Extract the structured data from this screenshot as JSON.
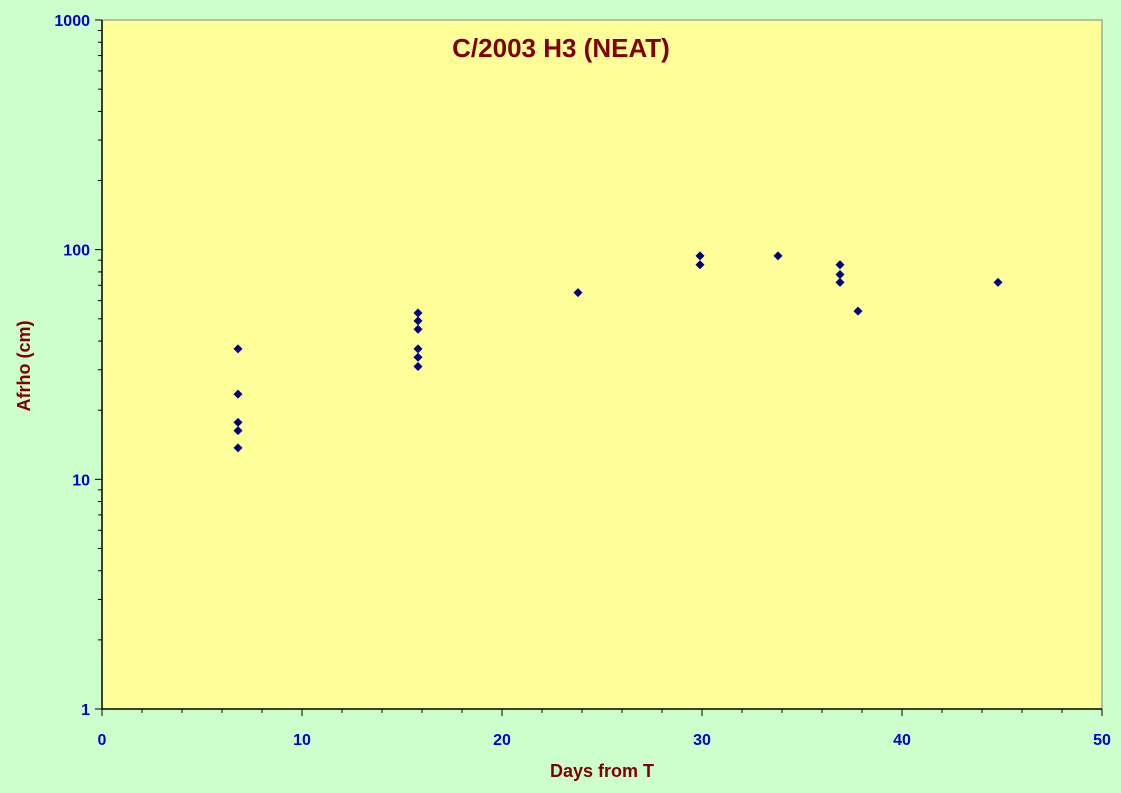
{
  "chart_data": {
    "type": "scatter",
    "title": "C/2003 H3 (NEAT)",
    "xlabel": "Days from T",
    "ylabel": "Afrho (cm)",
    "xlim": [
      0,
      50
    ],
    "ylim": [
      1,
      1000
    ],
    "y_scale": "log",
    "x_ticks": [
      0,
      10,
      20,
      30,
      40,
      50
    ],
    "x_tick_labels": [
      "0",
      "10",
      "20",
      "30",
      "40",
      "50"
    ],
    "y_ticks": [
      1,
      10,
      100,
      1000
    ],
    "y_tick_labels": [
      "1",
      "10",
      "100",
      "1000"
    ],
    "grid": false,
    "legend": "none",
    "colors": {
      "page_bg": "#ccffcc",
      "plot_bg": "#ffff99",
      "marker": "#000080",
      "title": "#800000",
      "tick_labels": "#0000cc"
    },
    "series": [
      {
        "points": [
          {
            "x": 6.8,
            "y": 37
          },
          {
            "x": 6.8,
            "y": 23.5
          },
          {
            "x": 6.8,
            "y": 17.7
          },
          {
            "x": 6.8,
            "y": 16.3
          },
          {
            "x": 6.8,
            "y": 13.7
          },
          {
            "x": 15.8,
            "y": 53
          },
          {
            "x": 15.8,
            "y": 49
          },
          {
            "x": 15.8,
            "y": 45
          },
          {
            "x": 15.8,
            "y": 37
          },
          {
            "x": 15.8,
            "y": 34
          },
          {
            "x": 15.8,
            "y": 31
          },
          {
            "x": 23.8,
            "y": 65
          },
          {
            "x": 29.9,
            "y": 94
          },
          {
            "x": 29.9,
            "y": 86
          },
          {
            "x": 33.8,
            "y": 94
          },
          {
            "x": 36.9,
            "y": 86
          },
          {
            "x": 36.9,
            "y": 78
          },
          {
            "x": 36.9,
            "y": 72
          },
          {
            "x": 37.8,
            "y": 54
          },
          {
            "x": 44.8,
            "y": 72
          }
        ]
      }
    ]
  }
}
